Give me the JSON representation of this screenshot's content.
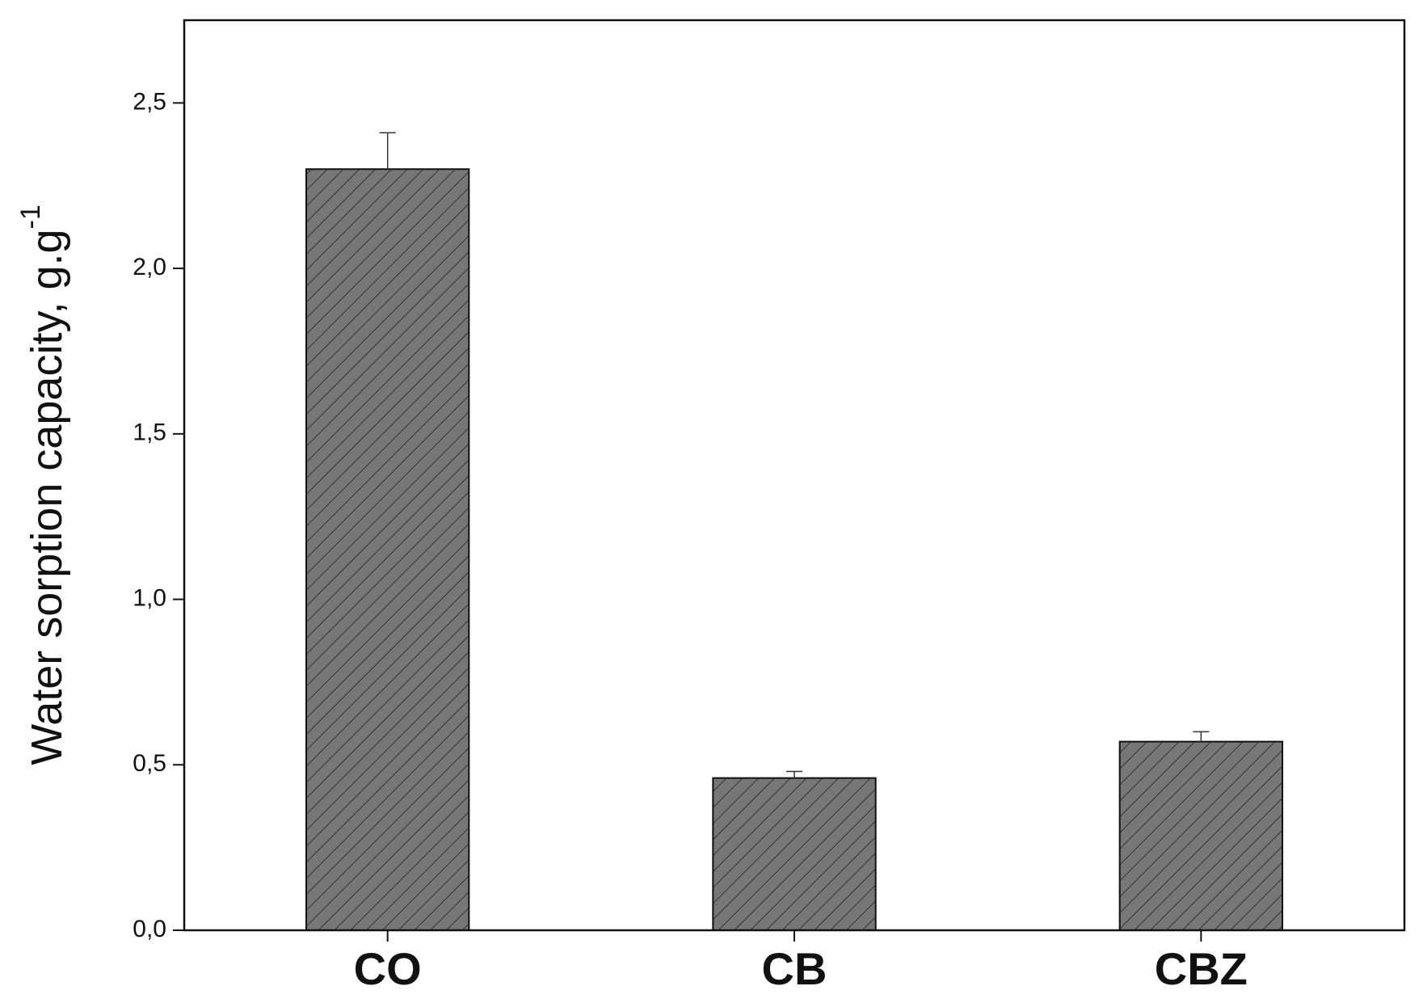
{
  "chart_data": {
    "type": "bar",
    "ylabel": "Water sorption capacity, g.g",
    "ylabel_superscript": "-1",
    "categories": [
      "CO",
      "CB",
      "CBZ"
    ],
    "values": [
      2.3,
      0.46,
      0.57
    ],
    "errors": [
      0.11,
      0.02,
      0.03
    ],
    "color": "#777777",
    "hatch": "diagonal",
    "ylim": [
      0,
      2.75
    ],
    "yticks": [
      {
        "value": 0,
        "label": "0,0"
      },
      {
        "value": 0.5,
        "label": "0,5"
      },
      {
        "value": 1,
        "label": "1,0"
      },
      {
        "value": 1.5,
        "label": "1,5"
      },
      {
        "value": 2,
        "label": "2,0"
      },
      {
        "value": 2.5,
        "label": "2,5"
      }
    ],
    "grid": false
  }
}
